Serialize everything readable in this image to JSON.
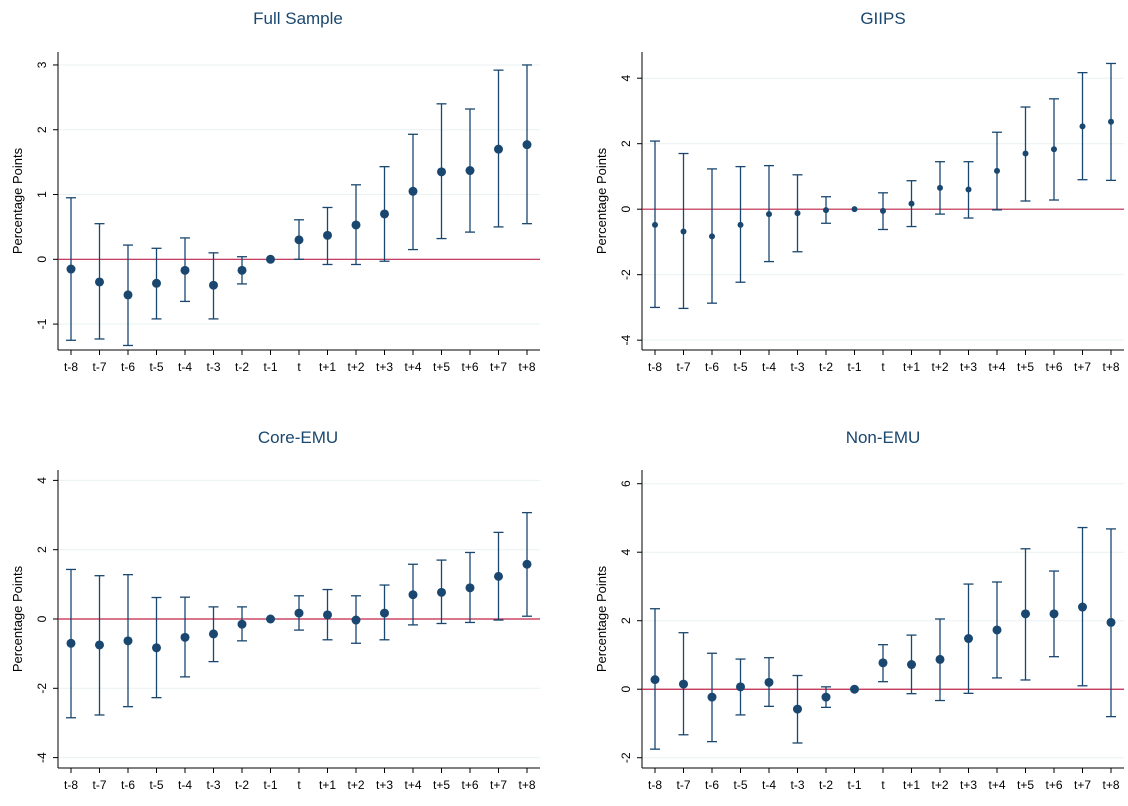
{
  "figure": {
    "colors": {
      "marker": "#1a476f",
      "errorbar": "#1a476f",
      "zero_line": "#c0254a",
      "grid": "#eaf2f3",
      "axis": "#000000"
    }
  },
  "chart_data": [
    {
      "type": "scatter",
      "title": "Full Sample",
      "xlabel": "",
      "ylabel": "Percentage Points",
      "ylim": [
        -1.4,
        3.2
      ],
      "yticks": [
        -1,
        0,
        1,
        2,
        3
      ],
      "ytick_labels": [
        "-1",
        "0",
        "1",
        "2",
        "3"
      ],
      "categories": [
        "t-8",
        "t-7",
        "t-6",
        "t-5",
        "t-4",
        "t-3",
        "t-2",
        "t-1",
        "t",
        "t+1",
        "t+2",
        "t+3",
        "t+4",
        "t+5",
        "t+6",
        "t+7",
        "t+8"
      ],
      "values": [
        -0.15,
        -0.35,
        -0.55,
        -0.37,
        -0.17,
        -0.4,
        -0.17,
        0.0,
        0.3,
        0.37,
        0.53,
        0.7,
        1.05,
        1.35,
        1.37,
        1.7,
        1.77
      ],
      "ci_low": [
        -1.25,
        -1.23,
        -1.33,
        -0.92,
        -0.65,
        -0.92,
        -0.38,
        0.0,
        0.0,
        -0.08,
        -0.08,
        -0.03,
        0.15,
        0.32,
        0.42,
        0.5,
        0.55
      ],
      "ci_high": [
        0.95,
        0.55,
        0.22,
        0.17,
        0.33,
        0.1,
        0.04,
        0.0,
        0.61,
        0.8,
        1.15,
        1.43,
        1.93,
        2.4,
        2.32,
        2.92,
        3.0
      ],
      "reference_line": 0,
      "grid": true
    },
    {
      "type": "scatter",
      "title": "GIIPS",
      "xlabel": "",
      "ylabel": "Percentage Points",
      "ylim": [
        -4.3,
        4.8
      ],
      "yticks": [
        -4,
        -2,
        0,
        2,
        4
      ],
      "ytick_labels": [
        "-4",
        "-2",
        "0",
        "2",
        "4"
      ],
      "categories": [
        "t-8",
        "t-7",
        "t-6",
        "t-5",
        "t-4",
        "t-3",
        "t-2",
        "t-1",
        "t",
        "t+1",
        "t+2",
        "t+3",
        "t+4",
        "t+5",
        "t+6",
        "t+7",
        "t+8"
      ],
      "values": [
        -0.48,
        -0.68,
        -0.83,
        -0.48,
        -0.15,
        -0.12,
        -0.03,
        0.0,
        -0.05,
        0.17,
        0.65,
        0.6,
        1.17,
        1.7,
        1.83,
        2.53,
        2.67
      ],
      "ci_low": [
        -3.0,
        -3.03,
        -2.87,
        -2.23,
        -1.6,
        -1.3,
        -0.43,
        0.0,
        -0.62,
        -0.53,
        -0.15,
        -0.27,
        -0.02,
        0.25,
        0.28,
        0.9,
        0.88
      ],
      "ci_high": [
        2.08,
        1.7,
        1.23,
        1.3,
        1.33,
        1.05,
        0.38,
        0.0,
        0.5,
        0.87,
        1.45,
        1.45,
        2.35,
        3.12,
        3.37,
        4.17,
        4.45
      ],
      "reference_line": 0,
      "grid": true
    },
    {
      "type": "scatter",
      "title": "Core-EMU",
      "xlabel": "",
      "ylabel": "Percentage Points",
      "ylim": [
        -4.3,
        4.3
      ],
      "yticks": [
        -4,
        -2,
        0,
        2,
        4
      ],
      "ytick_labels": [
        "-4",
        "-2",
        "0",
        "2",
        "4"
      ],
      "categories": [
        "t-8",
        "t-7",
        "t-6",
        "t-5",
        "t-4",
        "t-3",
        "t-2",
        "t-1",
        "t",
        "t+1",
        "t+2",
        "t+3",
        "t+4",
        "t+5",
        "t+6",
        "t+7",
        "t+8"
      ],
      "values": [
        -0.7,
        -0.75,
        -0.63,
        -0.83,
        -0.53,
        -0.43,
        -0.15,
        0.0,
        0.17,
        0.12,
        -0.03,
        0.17,
        0.7,
        0.77,
        0.9,
        1.23,
        1.58
      ],
      "ci_low": [
        -2.85,
        -2.77,
        -2.53,
        -2.27,
        -1.67,
        -1.23,
        -0.63,
        0.0,
        -0.32,
        -0.6,
        -0.7,
        -0.6,
        -0.17,
        -0.13,
        -0.1,
        -0.03,
        0.08
      ],
      "ci_high": [
        1.43,
        1.25,
        1.28,
        0.62,
        0.63,
        0.35,
        0.35,
        0.0,
        0.67,
        0.85,
        0.67,
        0.98,
        1.58,
        1.7,
        1.92,
        2.5,
        3.07
      ],
      "reference_line": 0,
      "grid": true
    },
    {
      "type": "scatter",
      "title": "Non-EMU",
      "xlabel": "",
      "ylabel": "Percentage Points",
      "ylim": [
        -2.3,
        6.4
      ],
      "yticks": [
        -2,
        0,
        2,
        4,
        6
      ],
      "ytick_labels": [
        "-2",
        "0",
        "2",
        "4",
        "6"
      ],
      "categories": [
        "t-8",
        "t-7",
        "t-6",
        "t-5",
        "t-4",
        "t-3",
        "t-2",
        "t-1",
        "t",
        "t+1",
        "t+2",
        "t+3",
        "t+4",
        "t+5",
        "t+6",
        "t+7",
        "t+8"
      ],
      "values": [
        0.28,
        0.15,
        -0.23,
        0.07,
        0.2,
        -0.58,
        -0.23,
        0.0,
        0.77,
        0.72,
        0.87,
        1.48,
        1.73,
        2.2,
        2.2,
        2.4,
        1.95
      ],
      "ci_low": [
        -1.75,
        -1.33,
        -1.53,
        -0.75,
        -0.5,
        -1.57,
        -0.53,
        0.0,
        0.22,
        -0.13,
        -0.33,
        -0.12,
        0.33,
        0.27,
        0.95,
        0.1,
        -0.8
      ],
      "ci_high": [
        2.35,
        1.65,
        1.05,
        0.88,
        0.92,
        0.4,
        0.07,
        0.0,
        1.3,
        1.58,
        2.05,
        3.07,
        3.13,
        4.1,
        3.45,
        4.72,
        4.68
      ],
      "reference_line": 0,
      "grid": true
    }
  ]
}
